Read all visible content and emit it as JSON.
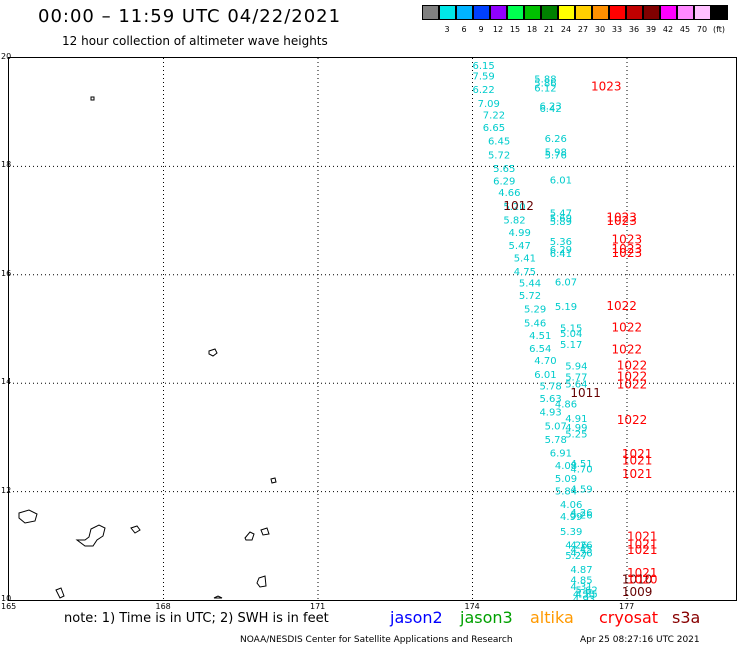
{
  "header": {
    "title": "00:00 – 11:59 UTC 04/22/2021",
    "subtitle": "12 hour collection of altimeter wave heights"
  },
  "color_scale": {
    "swatches": [
      {
        "color": "#808080",
        "label": ""
      },
      {
        "color": "#00e8e8",
        "label": "3"
      },
      {
        "color": "#00b4ff",
        "label": "6"
      },
      {
        "color": "#0040ff",
        "label": "9"
      },
      {
        "color": "#9000ff",
        "label": "12"
      },
      {
        "color": "#00ff50",
        "label": "15"
      },
      {
        "color": "#00c000",
        "label": "18"
      },
      {
        "color": "#008000",
        "label": "21"
      },
      {
        "color": "#ffff00",
        "label": "24"
      },
      {
        "color": "#ffd000",
        "label": "27"
      },
      {
        "color": "#ff9000",
        "label": "30"
      },
      {
        "color": "#ff0000",
        "label": "33"
      },
      {
        "color": "#c00000",
        "label": "36"
      },
      {
        "color": "#800000",
        "label": "39"
      },
      {
        "color": "#ff00ff",
        "label": "42"
      },
      {
        "color": "#ff88ff",
        "label": "45"
      },
      {
        "color": "#ffc0ff",
        "label": "70"
      },
      {
        "color": "#000000",
        "label": "(ft)"
      }
    ]
  },
  "axes": {
    "lat_labels": [
      "20",
      "18",
      "16",
      "14",
      "12",
      "10"
    ],
    "lon_labels": [
      "165",
      "168",
      "171",
      "174",
      "177"
    ]
  },
  "colors": {
    "swh": "#00cccc",
    "pressure_red": "#ff0000",
    "pressure_dark": "#660000",
    "jason2": "#0000ff",
    "jason3": "#00a000",
    "altika": "#ff9900",
    "cryosat": "#ff0000",
    "s3a": "#880000"
  },
  "swh_readings": [
    {
      "lon": 174.0,
      "lat": 19.8,
      "text": "6.15"
    },
    {
      "lon": 174.0,
      "lat": 19.6,
      "text": "7.59"
    },
    {
      "lon": 174.0,
      "lat": 19.35,
      "text": "6.22"
    },
    {
      "lon": 174.1,
      "lat": 19.1,
      "text": "7.09"
    },
    {
      "lon": 174.2,
      "lat": 18.88,
      "text": "7.22"
    },
    {
      "lon": 174.2,
      "lat": 18.65,
      "text": "6.65"
    },
    {
      "lon": 174.3,
      "lat": 18.4,
      "text": "6.45"
    },
    {
      "lon": 174.3,
      "lat": 18.15,
      "text": "5.72"
    },
    {
      "lon": 174.4,
      "lat": 17.9,
      "text": "5.65"
    },
    {
      "lon": 174.4,
      "lat": 17.67,
      "text": "6.29"
    },
    {
      "lon": 174.5,
      "lat": 17.45,
      "text": "4.66"
    },
    {
      "lon": 174.6,
      "lat": 17.2,
      "text": "5.20"
    },
    {
      "lon": 174.6,
      "lat": 16.95,
      "text": "5.82"
    },
    {
      "lon": 174.7,
      "lat": 16.72,
      "text": "4.99"
    },
    {
      "lon": 174.7,
      "lat": 16.48,
      "text": "5.47"
    },
    {
      "lon": 174.8,
      "lat": 16.25,
      "text": "5.41"
    },
    {
      "lon": 174.8,
      "lat": 16.0,
      "text": "4.75"
    },
    {
      "lon": 174.9,
      "lat": 15.78,
      "text": "5.44"
    },
    {
      "lon": 174.9,
      "lat": 15.55,
      "text": "5.72"
    },
    {
      "lon": 175.0,
      "lat": 15.3,
      "text": "5.29"
    },
    {
      "lon": 175.0,
      "lat": 15.05,
      "text": "5.46"
    },
    {
      "lon": 175.1,
      "lat": 14.82,
      "text": "4.51"
    },
    {
      "lon": 175.1,
      "lat": 14.58,
      "text": "6.54"
    },
    {
      "lon": 175.2,
      "lat": 14.35,
      "text": "4.70"
    },
    {
      "lon": 175.2,
      "lat": 14.1,
      "text": "6.01"
    },
    {
      "lon": 175.3,
      "lat": 13.88,
      "text": "5.78"
    },
    {
      "lon": 175.3,
      "lat": 13.65,
      "text": "5.63"
    },
    {
      "lon": 175.3,
      "lat": 13.4,
      "text": "4.93"
    },
    {
      "lon": 175.4,
      "lat": 13.15,
      "text": "5.07"
    },
    {
      "lon": 175.4,
      "lat": 12.9,
      "text": "5.78"
    },
    {
      "lon": 175.5,
      "lat": 12.65,
      "text": "6.91"
    },
    {
      "lon": 175.6,
      "lat": 12.42,
      "text": "4.08"
    },
    {
      "lon": 175.6,
      "lat": 12.18,
      "text": "5.09"
    },
    {
      "lon": 175.6,
      "lat": 11.95,
      "text": "5.84"
    },
    {
      "lon": 175.7,
      "lat": 11.7,
      "text": "4.06"
    },
    {
      "lon": 175.7,
      "lat": 11.48,
      "text": "4.99"
    },
    {
      "lon": 175.7,
      "lat": 11.2,
      "text": "5.39"
    },
    {
      "lon": 175.8,
      "lat": 10.95,
      "text": "4.26"
    },
    {
      "lon": 175.8,
      "lat": 10.76,
      "text": "5.27"
    },
    {
      "lon": 175.9,
      "lat": 10.5,
      "text": "4.87"
    },
    {
      "lon": 175.9,
      "lat": 10.3,
      "text": "4.85"
    },
    {
      "lon": 175.9,
      "lat": 10.18,
      "text": "4.31"
    },
    {
      "lon": 175.95,
      "lat": 10.05,
      "text": "4.55"
    },
    {
      "lon": 175.95,
      "lat": 9.95,
      "text": "4.93"
    },
    {
      "lon": 176.0,
      "lat": 9.75,
      "text": "4.56"
    },
    {
      "lon": 175.2,
      "lat": 19.55,
      "text": "5.88"
    },
    {
      "lon": 175.2,
      "lat": 19.47,
      "text": "5.86"
    },
    {
      "lon": 175.2,
      "lat": 19.38,
      "text": "6.12"
    },
    {
      "lon": 175.3,
      "lat": 19.05,
      "text": "6.23"
    },
    {
      "lon": 175.3,
      "lat": 19.0,
      "text": "6.42"
    },
    {
      "lon": 175.4,
      "lat": 18.45,
      "text": "6.26"
    },
    {
      "lon": 175.4,
      "lat": 18.2,
      "text": "5.98"
    },
    {
      "lon": 175.4,
      "lat": 18.15,
      "text": "5.76"
    },
    {
      "lon": 175.5,
      "lat": 17.68,
      "text": "6.01"
    },
    {
      "lon": 175.5,
      "lat": 17.08,
      "text": "5.47"
    },
    {
      "lon": 175.5,
      "lat": 16.98,
      "text": "5.69"
    },
    {
      "lon": 175.5,
      "lat": 16.92,
      "text": "5.89"
    },
    {
      "lon": 175.5,
      "lat": 16.55,
      "text": "5.36"
    },
    {
      "lon": 175.5,
      "lat": 16.4,
      "text": "6.29"
    },
    {
      "lon": 175.5,
      "lat": 16.33,
      "text": "6.41"
    },
    {
      "lon": 175.6,
      "lat": 15.8,
      "text": "6.07"
    },
    {
      "lon": 175.6,
      "lat": 15.35,
      "text": "5.19"
    },
    {
      "lon": 175.7,
      "lat": 14.95,
      "text": "5.15"
    },
    {
      "lon": 175.7,
      "lat": 14.85,
      "text": "5.04"
    },
    {
      "lon": 175.7,
      "lat": 14.65,
      "text": "5.17"
    },
    {
      "lon": 175.8,
      "lat": 14.25,
      "text": "5.94"
    },
    {
      "lon": 175.8,
      "lat": 14.05,
      "text": "5.77"
    },
    {
      "lon": 175.8,
      "lat": 13.92,
      "text": "5.64"
    },
    {
      "lon": 175.6,
      "lat": 13.55,
      "text": "4.86"
    },
    {
      "lon": 175.8,
      "lat": 13.28,
      "text": "4.91"
    },
    {
      "lon": 175.8,
      "lat": 13.12,
      "text": "4.99"
    },
    {
      "lon": 175.8,
      "lat": 13.0,
      "text": "5.25"
    },
    {
      "lon": 175.9,
      "lat": 12.45,
      "text": "4.51"
    },
    {
      "lon": 175.9,
      "lat": 12.35,
      "text": "4.70"
    },
    {
      "lon": 175.9,
      "lat": 11.98,
      "text": "4.59"
    },
    {
      "lon": 175.9,
      "lat": 11.55,
      "text": "4.26"
    },
    {
      "lon": 175.9,
      "lat": 11.5,
      "text": "5.26"
    },
    {
      "lon": 175.9,
      "lat": 10.95,
      "text": "4.26"
    },
    {
      "lon": 175.9,
      "lat": 10.87,
      "text": "4.45"
    },
    {
      "lon": 175.9,
      "lat": 10.8,
      "text": "4.26"
    },
    {
      "lon": 176.0,
      "lat": 10.12,
      "text": "5.62"
    },
    {
      "lon": 176.0,
      "lat": 10.05,
      "text": "4.85"
    }
  ],
  "pressure_readings": [
    {
      "lon": 176.3,
      "lat": 19.4,
      "text": "1023",
      "style": "red"
    },
    {
      "lon": 174.6,
      "lat": 17.2,
      "text": "1012",
      "style": "dark"
    },
    {
      "lon": 176.6,
      "lat": 16.98,
      "text": "1023",
      "style": "red"
    },
    {
      "lon": 176.6,
      "lat": 16.92,
      "text": "1023",
      "style": "red"
    },
    {
      "lon": 176.7,
      "lat": 16.58,
      "text": "1023",
      "style": "red"
    },
    {
      "lon": 176.7,
      "lat": 16.4,
      "text": "1023",
      "style": "red"
    },
    {
      "lon": 176.7,
      "lat": 16.33,
      "text": "1023",
      "style": "red"
    },
    {
      "lon": 176.6,
      "lat": 15.35,
      "text": "1022",
      "style": "red"
    },
    {
      "lon": 176.7,
      "lat": 14.95,
      "text": "1022",
      "style": "red"
    },
    {
      "lon": 176.7,
      "lat": 14.55,
      "text": "1022",
      "style": "red"
    },
    {
      "lon": 176.8,
      "lat": 14.25,
      "text": "1022",
      "style": "red"
    },
    {
      "lon": 176.8,
      "lat": 14.05,
      "text": "1022",
      "style": "red"
    },
    {
      "lon": 176.8,
      "lat": 13.9,
      "text": "1022",
      "style": "red"
    },
    {
      "lon": 175.9,
      "lat": 13.75,
      "text": "1011",
      "style": "dark"
    },
    {
      "lon": 176.8,
      "lat": 13.25,
      "text": "1022",
      "style": "red"
    },
    {
      "lon": 176.9,
      "lat": 12.62,
      "text": "1021",
      "style": "red"
    },
    {
      "lon": 176.9,
      "lat": 12.5,
      "text": "1021",
      "style": "red"
    },
    {
      "lon": 176.9,
      "lat": 12.25,
      "text": "1021",
      "style": "red"
    },
    {
      "lon": 177.0,
      "lat": 11.1,
      "text": "1021",
      "style": "red"
    },
    {
      "lon": 177.0,
      "lat": 10.95,
      "text": "1021",
      "style": "red"
    },
    {
      "lon": 177.0,
      "lat": 10.85,
      "text": "1021",
      "style": "red"
    },
    {
      "lon": 177.0,
      "lat": 10.42,
      "text": "1021",
      "style": "red"
    },
    {
      "lon": 176.9,
      "lat": 10.3,
      "text": "1010",
      "style": "dark"
    },
    {
      "lon": 177.0,
      "lat": 10.3,
      "text": "1020",
      "style": "red"
    },
    {
      "lon": 176.9,
      "lat": 10.07,
      "text": "1009",
      "style": "dark"
    }
  ],
  "footer": {
    "note": "note: 1) Time is in UTC; 2) SWH is in feet",
    "sat_jason2": "jason2",
    "sat_jason3": "jason3",
    "sat_altika": "altika",
    "sat_cryosat": "cryosat",
    "sat_s3a": "s3a",
    "credit": "NOAA/NESDIS Center for Satellite Applications and Research",
    "timestamp": "Apr 25 08:27:16 UTC 2021"
  }
}
